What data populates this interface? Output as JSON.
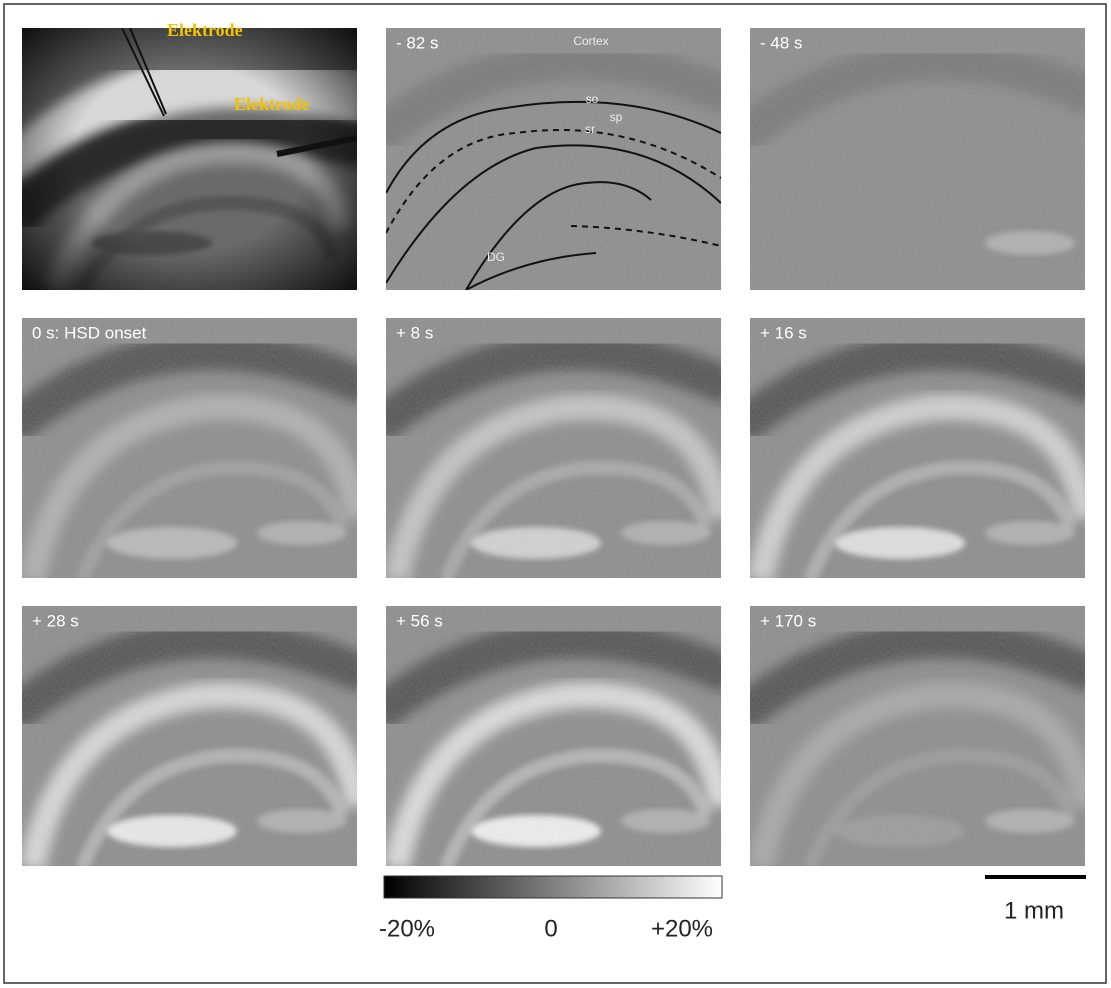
{
  "overview": {
    "electrode_labels": [
      "Elektrode",
      "Elektrode"
    ]
  },
  "panels": [
    {
      "time": "- 82 s",
      "layers": [
        "Cortex",
        "so",
        "sp",
        "sr",
        "DG"
      ]
    },
    {
      "time": "- 48 s"
    },
    {
      "time": "0 s:  HSD onset"
    },
    {
      "time": "+ 8 s"
    },
    {
      "time": "+ 16 s"
    },
    {
      "time": "+ 28 s"
    },
    {
      "time": "+ 56 s"
    },
    {
      "time": "+ 170 s"
    }
  ],
  "colorbar": {
    "labels": [
      "-20%",
      "0",
      "+20%"
    ]
  },
  "scale_bar": {
    "label": "1 mm"
  }
}
